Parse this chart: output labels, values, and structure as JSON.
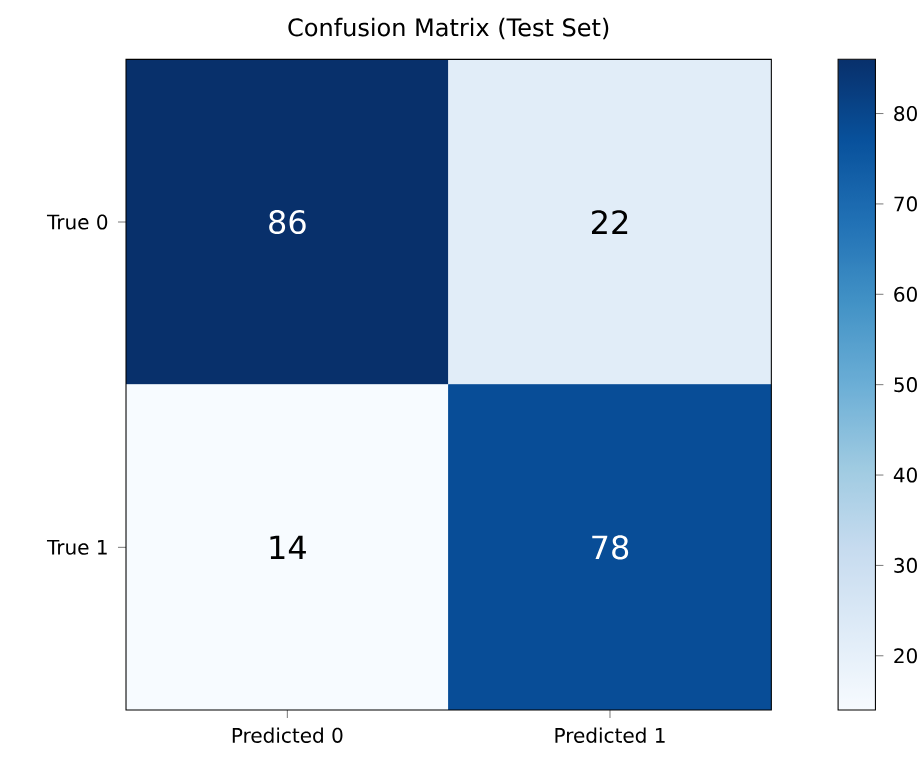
{
  "chart_data": {
    "type": "heatmap",
    "title": "Confusion Matrix (Test Set)",
    "categories": [
      "Predicted 0",
      "Predicted 1"
    ],
    "y_categories": [
      "True 0",
      "True 1"
    ],
    "cells": [
      [
        86,
        22
      ],
      [
        14,
        78
      ]
    ],
    "clim": [
      14,
      86
    ],
    "cticks": [
      20,
      30,
      40,
      50,
      60,
      70,
      80
    ],
    "data_labels": true
  }
}
